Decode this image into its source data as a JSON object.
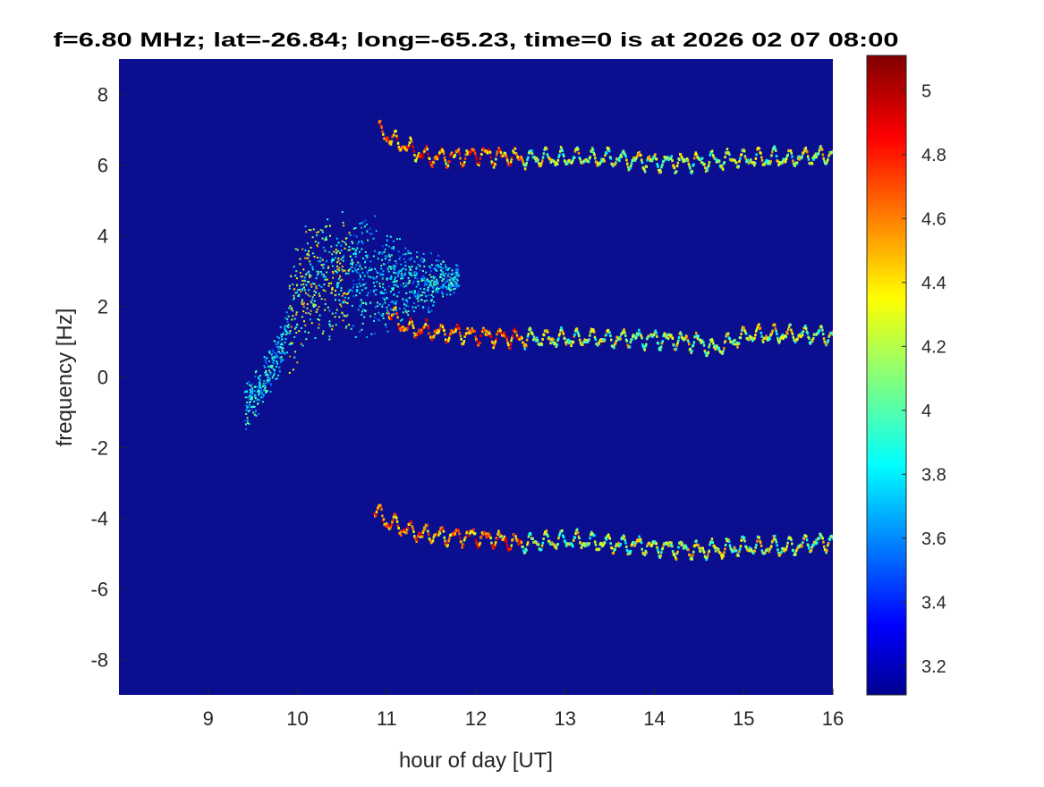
{
  "chart_data": {
    "type": "heatmap",
    "title": "f=6.80 MHz;  lat=-26.84; long=-65.23, time=0 is at 2026 02 07 08:00",
    "xlabel": "hour of day [UT]",
    "ylabel": "frequency [Hz]",
    "xlim": [
      8,
      16
    ],
    "ylim": [
      -9,
      9
    ],
    "xticks": [
      "9",
      "10",
      "11",
      "12",
      "13",
      "14",
      "15",
      "16"
    ],
    "yticks": [
      "-8",
      "-6",
      "-4",
      "-2",
      "0",
      "2",
      "4",
      "6",
      "8"
    ],
    "colorbar": {
      "colormap": "jet",
      "clim": [
        3.11,
        5.11
      ],
      "ticks": [
        "3.2",
        "3.4",
        "3.6",
        "3.8",
        "4",
        "4.2",
        "4.4",
        "4.6",
        "4.8",
        "5"
      ]
    },
    "background_color": "#0b0e8f",
    "series": [
      {
        "name": "upper-trace",
        "x": [
          10.9,
          11.0,
          11.3,
          11.5,
          12.0,
          12.5,
          13.0,
          13.5,
          14.0,
          14.5,
          15.0,
          15.5,
          16.0
        ],
        "y": [
          7.0,
          6.8,
          6.4,
          6.2,
          6.3,
          6.2,
          6.2,
          6.2,
          6.1,
          6.1,
          6.2,
          6.2,
          6.3
        ]
      },
      {
        "name": "middle-trace",
        "x": [
          11.0,
          11.2,
          11.5,
          12.0,
          12.5,
          13.0,
          13.5,
          14.0,
          14.5,
          14.65,
          15.0,
          15.5,
          16.0
        ],
        "y": [
          1.9,
          1.4,
          1.3,
          1.2,
          1.1,
          1.1,
          1.1,
          1.1,
          1.0,
          0.8,
          1.2,
          1.2,
          1.2
        ]
      },
      {
        "name": "lower-trace",
        "x": [
          10.85,
          11.0,
          11.3,
          11.6,
          12.0,
          12.5,
          13.0,
          13.5,
          14.0,
          14.5,
          15.0,
          15.5,
          16.0
        ],
        "y": [
          -3.7,
          -4.1,
          -4.4,
          -4.5,
          -4.5,
          -4.7,
          -4.6,
          -4.7,
          -4.8,
          -4.9,
          -4.8,
          -4.8,
          -4.6
        ]
      },
      {
        "name": "diffuse-blob",
        "x": [
          9.4,
          9.6,
          9.8,
          10.0,
          10.2,
          10.4,
          10.6,
          10.9,
          11.3,
          11.8
        ],
        "y": [
          -0.8,
          -0.2,
          0.8,
          2.2,
          2.8,
          2.9,
          2.9,
          2.8,
          2.7,
          2.8
        ]
      }
    ]
  }
}
